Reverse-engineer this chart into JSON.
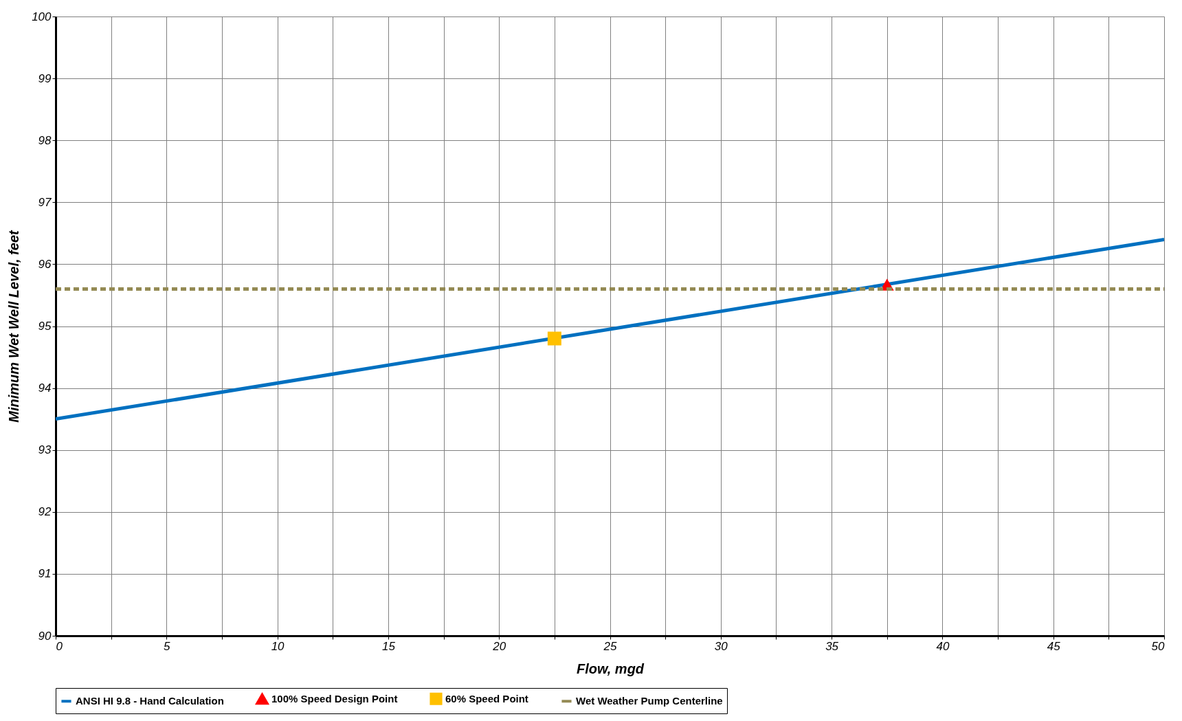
{
  "chart_data": {
    "type": "line",
    "xlabel": "Flow, mgd",
    "ylabel": "Minimum Wet Well Level, feet",
    "xlim": [
      0,
      50
    ],
    "ylim": [
      90,
      100
    ],
    "xticks": [
      0,
      {
        "value": 2.5,
        "label": null
      },
      5,
      {
        "value": 7.5,
        "label": null
      },
      10,
      {
        "value": 12.5,
        "label": null
      },
      15,
      {
        "value": 17.5,
        "label": null
      },
      20,
      {
        "value": 22.5,
        "label": null
      },
      25,
      {
        "value": 27.5,
        "label": null
      },
      30,
      {
        "value": 32.5,
        "label": null
      },
      35,
      {
        "value": 37.5,
        "label": null
      },
      40,
      {
        "value": 42.5,
        "label": null
      },
      45,
      {
        "value": 47.5,
        "label": null
      },
      50
    ],
    "yticks": [
      90,
      91,
      92,
      93,
      94,
      95,
      96,
      97,
      98,
      99,
      100
    ],
    "grid": true,
    "legend": "bottom",
    "series": [
      {
        "name": "ANSI HI 9.8 - Hand Calculation",
        "color": "#0070c0",
        "x": [
          0,
          50
        ],
        "values": [
          93.5,
          96.4
        ],
        "marker": "none",
        "line_style": "solid"
      },
      {
        "name": "100% Speed Design Point",
        "type": "scatter",
        "color": "#ff0000",
        "x": [
          37.5
        ],
        "values": [
          95.67
        ],
        "marker": "triangle"
      },
      {
        "name": "60% Speed Point",
        "type": "scatter",
        "color": "#ffc000",
        "x": [
          22.5
        ],
        "values": [
          94.8
        ],
        "marker": "square"
      },
      {
        "name": "Wet Weather Pump Centerline",
        "color": "#948a54",
        "x": [
          0,
          50
        ],
        "values": [
          95.6,
          95.6
        ],
        "marker": "none",
        "line_style": "dashed"
      }
    ]
  }
}
